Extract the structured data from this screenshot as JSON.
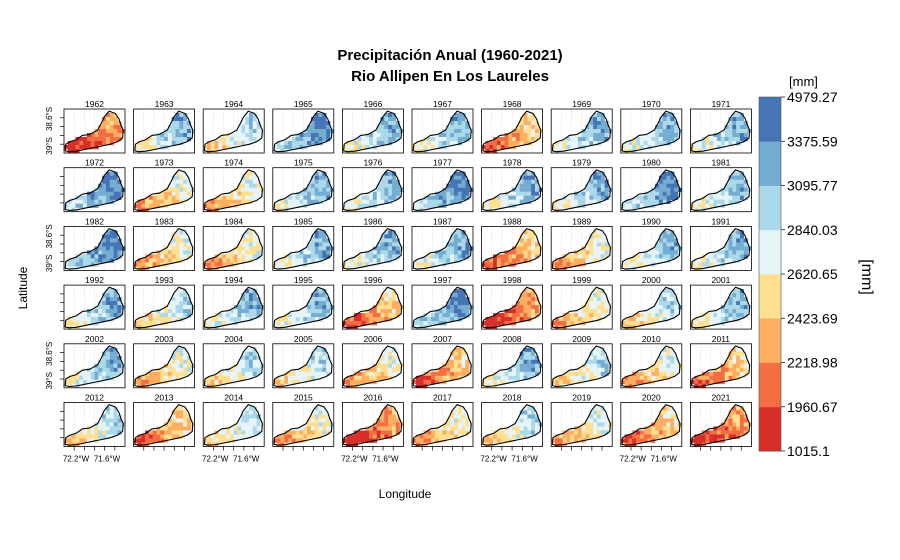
{
  "chart_data": {
    "type": "heatmap",
    "title": "Precipitación Anual (1960-2021)",
    "subtitle": "Rio Allipen En Los Laureles",
    "xlabel": "Longitude",
    "ylabel": "Latitude",
    "x_ticks": [
      "72.2°W",
      "71.6°W"
    ],
    "y_ticks": [
      "39°S",
      "38.6°S"
    ],
    "colorbar": {
      "unit_top": "[mm]",
      "unit_side": "[mm]",
      "breaks": [
        1015.1,
        1960.67,
        2218.98,
        2423.69,
        2620.65,
        2840.03,
        3095.77,
        3375.59,
        4979.27
      ],
      "break_labels": [
        "1015.1",
        "1960.67",
        "2218.98",
        "2423.69",
        "2620.65",
        "2840.03",
        "3095.77",
        "3375.59",
        "4979.27"
      ],
      "colors": [
        "#d7302a",
        "#f46d43",
        "#fdae61",
        "#fee090",
        "#e6f4f8",
        "#abd9e9",
        "#74add1",
        "#4575b4"
      ]
    },
    "panels": [
      {
        "year": "1962",
        "level": 1
      },
      {
        "year": "1963",
        "level": 5
      },
      {
        "year": "1964",
        "level": 4
      },
      {
        "year": "1965",
        "level": 6
      },
      {
        "year": "1966",
        "level": 5
      },
      {
        "year": "1967",
        "level": 5
      },
      {
        "year": "1968",
        "level": 2
      },
      {
        "year": "1969",
        "level": 5
      },
      {
        "year": "1970",
        "level": 5
      },
      {
        "year": "1971",
        "level": 5
      },
      {
        "year": "1972",
        "level": 6
      },
      {
        "year": "1973",
        "level": 3
      },
      {
        "year": "1974",
        "level": 3
      },
      {
        "year": "1975",
        "level": 5
      },
      {
        "year": "1976",
        "level": 5
      },
      {
        "year": "1977",
        "level": 6
      },
      {
        "year": "1978",
        "level": 5
      },
      {
        "year": "1979",
        "level": 5
      },
      {
        "year": "1980",
        "level": 6
      },
      {
        "year": "1981",
        "level": 5
      },
      {
        "year": "1982",
        "level": 6
      },
      {
        "year": "1983",
        "level": 3
      },
      {
        "year": "1984",
        "level": 3
      },
      {
        "year": "1985",
        "level": 5
      },
      {
        "year": "1986",
        "level": 5
      },
      {
        "year": "1987",
        "level": 5
      },
      {
        "year": "1988",
        "level": 2
      },
      {
        "year": "1989",
        "level": 3
      },
      {
        "year": "1990",
        "level": 5
      },
      {
        "year": "1991",
        "level": 5
      },
      {
        "year": "1992",
        "level": 5
      },
      {
        "year": "1993",
        "level": 4
      },
      {
        "year": "1994",
        "level": 5
      },
      {
        "year": "1995",
        "level": 5
      },
      {
        "year": "1996",
        "level": 2
      },
      {
        "year": "1997",
        "level": 6
      },
      {
        "year": "1998",
        "level": 1
      },
      {
        "year": "1999",
        "level": 3
      },
      {
        "year": "2000",
        "level": 4
      },
      {
        "year": "2001",
        "level": 5
      },
      {
        "year": "2002",
        "level": 5
      },
      {
        "year": "2003",
        "level": 3
      },
      {
        "year": "2004",
        "level": 4
      },
      {
        "year": "2005",
        "level": 4
      },
      {
        "year": "2006",
        "level": 3
      },
      {
        "year": "2007",
        "level": 2
      },
      {
        "year": "2008",
        "level": 5
      },
      {
        "year": "2009",
        "level": 4
      },
      {
        "year": "2010",
        "level": 3
      },
      {
        "year": "2011",
        "level": 2
      },
      {
        "year": "2012",
        "level": 4
      },
      {
        "year": "2013",
        "level": 2
      },
      {
        "year": "2014",
        "level": 4
      },
      {
        "year": "2015",
        "level": 3
      },
      {
        "year": "2016",
        "level": 1
      },
      {
        "year": "2017",
        "level": 3
      },
      {
        "year": "2018",
        "level": 4
      },
      {
        "year": "2019",
        "level": 3
      },
      {
        "year": "2020",
        "level": 2
      },
      {
        "year": "2021",
        "level": 1
      }
    ]
  }
}
